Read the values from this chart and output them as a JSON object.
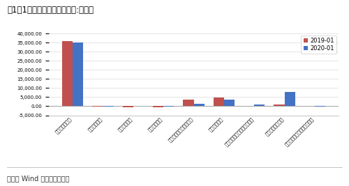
{
  "title": "图1：1月新增信贷结构（单位:亿元）",
  "source_text": "来源： Wind 中融信托研发部",
  "categories": [
    "新增人民币贷款",
    "新增外币贷款",
    "新增委托贷款",
    "新增信托贷款",
    "新增未贴现银行承兑汇票",
    "企业债券融资",
    "非金融上市公司境内股票融资",
    "地方政府专项债务",
    "存款类金融机构资产支持证券"
  ],
  "series": [
    {
      "name": "2019-01",
      "color": "#c0504d",
      "values": [
        35900,
        -200,
        -600,
        -500,
        3800,
        4900,
        0,
        1100,
        0
      ]
    },
    {
      "name": "2020-01",
      "color": "#4472c4",
      "values": [
        34900,
        -100,
        0,
        -300,
        1500,
        3800,
        900,
        7800,
        -200
      ]
    }
  ],
  "ylim": [
    -5000,
    40000
  ],
  "yticks": [
    -5000,
    0,
    5000,
    10000,
    15000,
    20000,
    25000,
    30000,
    35000,
    40000
  ],
  "background_color": "#ffffff",
  "grid_color": "#d0d0d0",
  "bar_width": 0.35,
  "title_fontsize": 8.5,
  "tick_fontsize": 5.0,
  "legend_fontsize": 6.0,
  "source_fontsize": 7.0
}
